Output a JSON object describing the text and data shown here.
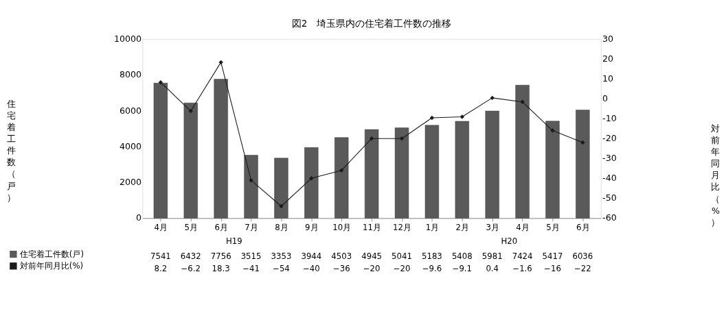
{
  "chart_data": {
    "type": "bar",
    "title": "図2　埼玉県内の住宅着工件数の推移",
    "ylabel": "住宅着工件数（戸）",
    "y2label": "対前年同月比（%）",
    "categories": [
      "4月",
      "5月",
      "6月",
      "7月",
      "8月",
      "9月",
      "10月",
      "11月",
      "12月",
      "1月",
      "2月",
      "3月",
      "4月",
      "5月",
      "6月"
    ],
    "series": [
      {
        "name": "住宅着工件数(戸)",
        "color": "#5a5a5a",
        "values": [
          7541,
          6432,
          7756,
          3515,
          3353,
          3944,
          4503,
          4945,
          5041,
          5183,
          5408,
          5981,
          7424,
          5417,
          6036
        ]
      },
      {
        "name": "対前年同月比(%)",
        "type": "line",
        "axis": "y2",
        "color": "#1a1a1a",
        "values": [
          8.2,
          -6.2,
          18.3,
          -41,
          -54,
          -40,
          -36,
          -20,
          -20,
          -9.6,
          -9.1,
          0.4,
          -1.6,
          -16,
          -22
        ]
      }
    ],
    "ylim": [
      0,
      10000
    ],
    "yticks": [
      0,
      2000,
      4000,
      6000,
      8000,
      10000
    ],
    "y2lim": [
      -60,
      30
    ],
    "y2ticks": [
      -60,
      -50,
      -40,
      -30,
      -20,
      -10,
      0,
      10,
      20,
      30
    ],
    "annotations": [
      "H19",
      "H20"
    ],
    "marker": "diamond",
    "data_labels": true,
    "legend": "bottom left",
    "grid": false
  }
}
